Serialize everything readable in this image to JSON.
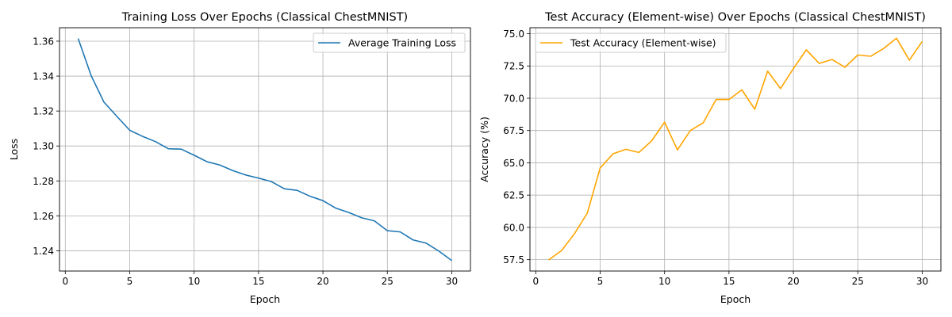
{
  "chart_data": [
    {
      "type": "line",
      "title": "Training Loss Over Epochs (Classical ChestMNIST)",
      "xlabel": "Epoch",
      "ylabel": "Loss",
      "xlim": [
        -0.45,
        31.45
      ],
      "ylim": [
        1.2284,
        1.3677
      ],
      "xticks": [
        0,
        5,
        10,
        15,
        20,
        25,
        30
      ],
      "xtick_labels": [
        "0",
        "5",
        "10",
        "15",
        "20",
        "25",
        "30"
      ],
      "yticks": [
        1.24,
        1.26,
        1.28,
        1.3,
        1.32,
        1.34,
        1.36
      ],
      "ytick_labels": [
        "1.24",
        "1.26",
        "1.28",
        "1.30",
        "1.32",
        "1.34",
        "1.36"
      ],
      "grid": true,
      "legend_position": "upper right",
      "series": [
        {
          "name": "Average Training Loss",
          "color": "#1f77b4",
          "x": [
            1,
            2,
            3,
            4,
            5,
            6,
            7,
            8,
            9,
            10,
            11,
            12,
            13,
            14,
            15,
            16,
            17,
            18,
            19,
            20,
            21,
            22,
            23,
            24,
            25,
            26,
            27,
            28,
            29,
            30
          ],
          "values": [
            1.3615,
            1.3404,
            1.3251,
            1.317,
            1.309,
            1.3055,
            1.3025,
            1.2984,
            1.2982,
            1.2947,
            1.291,
            1.2891,
            1.2859,
            1.2834,
            1.2816,
            1.2796,
            1.2755,
            1.2746,
            1.2712,
            1.2687,
            1.2644,
            1.2619,
            1.2589,
            1.2571,
            1.2515,
            1.2508,
            1.2462,
            1.2444,
            1.2398,
            1.2344
          ]
        }
      ]
    },
    {
      "type": "line",
      "title": "Test Accuracy (Element-wise) Over Epochs (Classical ChestMNIST)",
      "xlabel": "Epoch",
      "ylabel": "Accuracy (%)",
      "xlim": [
        -0.45,
        31.45
      ],
      "ylim": [
        56.62,
        75.46
      ],
      "xticks": [
        0,
        5,
        10,
        15,
        20,
        25,
        30
      ],
      "xtick_labels": [
        "0",
        "5",
        "10",
        "15",
        "20",
        "25",
        "30"
      ],
      "yticks": [
        57.5,
        60.0,
        62.5,
        65.0,
        67.5,
        70.0,
        72.5,
        75.0
      ],
      "ytick_labels": [
        "57.5",
        "60.0",
        "62.5",
        "65.0",
        "67.5",
        "70.0",
        "72.5",
        "75.0"
      ],
      "grid": true,
      "legend_position": "upper left",
      "series": [
        {
          "name": "Test Accuracy (Element-wise)",
          "color": "#ffa500",
          "x": [
            1,
            2,
            3,
            4,
            5,
            6,
            7,
            8,
            9,
            10,
            11,
            12,
            13,
            14,
            15,
            16,
            17,
            18,
            19,
            20,
            21,
            22,
            23,
            24,
            25,
            26,
            27,
            28,
            29,
            30
          ],
          "values": [
            57.48,
            58.2,
            59.5,
            61.1,
            64.6,
            65.7,
            66.05,
            65.8,
            66.7,
            68.15,
            66.0,
            67.5,
            68.1,
            69.9,
            69.9,
            70.65,
            69.15,
            72.1,
            70.75,
            72.3,
            73.75,
            72.7,
            73.0,
            72.4,
            73.35,
            73.25,
            73.85,
            74.65,
            72.95,
            74.4
          ]
        }
      ]
    }
  ]
}
